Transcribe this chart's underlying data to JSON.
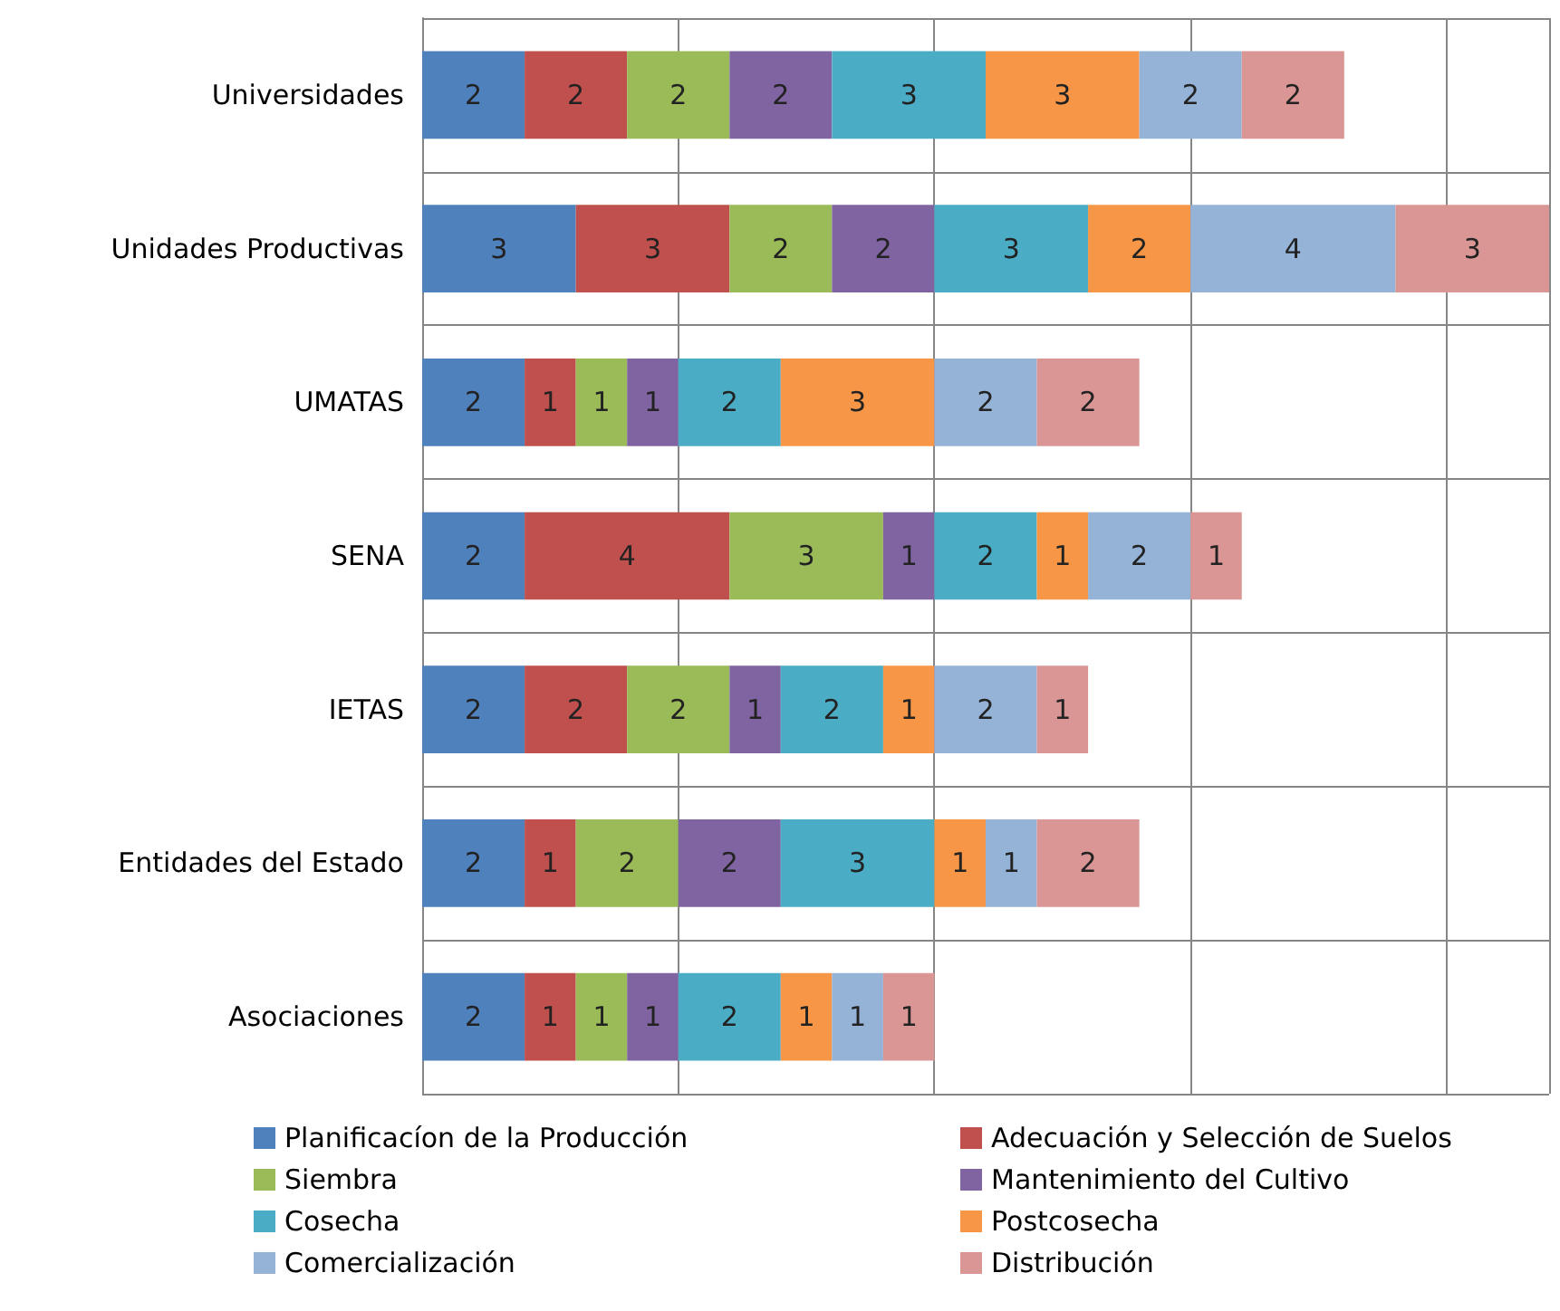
{
  "chart_data": {
    "type": "bar",
    "orientation": "horizontal",
    "stacked": true,
    "grid": true,
    "legend": "bottom",
    "data_labels": true,
    "tick_labels": "y",
    "categories": [
      "Universidades",
      "Unidades Productivas",
      "UMATAS",
      "SENA",
      "IETAS",
      "Entidades del Estado",
      "Asociaciones"
    ],
    "series": [
      {
        "name": "Planificacíon de la Producción",
        "color": "#4f81bd",
        "values": [
          2,
          3,
          2,
          2,
          2,
          2,
          2
        ]
      },
      {
        "name": "Adecuación y Selección de Suelos",
        "color": "#c0504d",
        "values": [
          2,
          3,
          1,
          4,
          2,
          1,
          1
        ]
      },
      {
        "name": "Siembra",
        "color": "#9bbb59",
        "values": [
          2,
          2,
          1,
          3,
          2,
          2,
          1
        ]
      },
      {
        "name": "Mantenimiento del Cultivo",
        "color": "#8064a2",
        "values": [
          2,
          2,
          1,
          1,
          1,
          2,
          1
        ]
      },
      {
        "name": "Cosecha",
        "color": "#4bacc6",
        "values": [
          3,
          3,
          2,
          2,
          2,
          3,
          2
        ]
      },
      {
        "name": "Postcosecha",
        "color": "#f79646",
        "values": [
          3,
          2,
          3,
          1,
          1,
          1,
          1
        ]
      },
      {
        "name": "Comercialización",
        "color": "#95b3d7",
        "values": [
          2,
          4,
          2,
          2,
          2,
          1,
          1
        ]
      },
      {
        "name": "Distribución",
        "color": "#d99694",
        "values": [
          2,
          3,
          2,
          1,
          1,
          2,
          1
        ]
      }
    ]
  }
}
